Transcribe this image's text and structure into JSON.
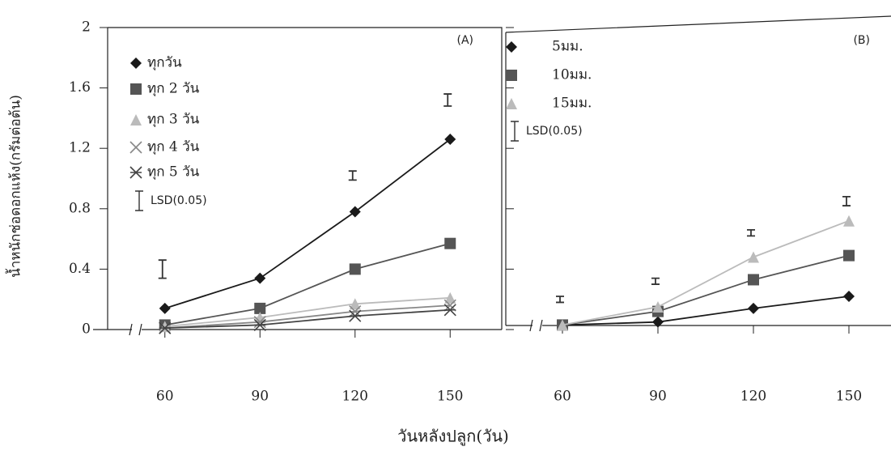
{
  "ylabel": "น้ำหนักช่อดอกแห้ง(กรัมต่อต้น)",
  "xlabel": "วันหลังปลูก(วัน)",
  "chart_data": [
    {
      "type": "line",
      "title": "(A)",
      "categories": [
        "60",
        "90",
        "120",
        "150"
      ],
      "ylim": [
        0,
        2
      ],
      "yticks": [
        0,
        0.4,
        0.8,
        1.2,
        1.6,
        2
      ],
      "series": [
        {
          "name": "ทุกวัน",
          "color": "#1a1a1a",
          "marker": "diamond",
          "values": [
            0.14,
            0.34,
            0.78,
            1.26
          ]
        },
        {
          "name": "ทุก 2 วัน",
          "color": "#555555",
          "marker": "square",
          "values": [
            0.03,
            0.14,
            0.4,
            0.57
          ]
        },
        {
          "name": "ทุก 3 วัน",
          "color": "#bbbbbb",
          "marker": "triangle",
          "values": [
            0.02,
            0.08,
            0.17,
            0.21
          ]
        },
        {
          "name": "ทุก 4 วัน",
          "color": "#888888",
          "marker": "x",
          "values": [
            0.01,
            0.05,
            0.12,
            0.16
          ]
        },
        {
          "name": "ทุก 5 วัน",
          "color": "#444444",
          "marker": "asterisk",
          "values": [
            0.01,
            0.03,
            0.09,
            0.13
          ]
        }
      ],
      "lsd": {
        "name": "LSD(0.05)",
        "color": "#333333",
        "values": [
          0.4,
          null,
          1.02,
          1.52
        ],
        "errors": [
          0.06,
          null,
          0.03,
          0.04
        ]
      }
    },
    {
      "type": "line",
      "title": "(B)",
      "categories": [
        "60",
        "90",
        "120",
        "150"
      ],
      "series": [
        {
          "name": "5มม.",
          "color": "#1a1a1a",
          "marker": "diamond",
          "values": [
            0.03,
            0.05,
            0.14,
            0.22
          ]
        },
        {
          "name": "10มม.",
          "color": "#555555",
          "marker": "square",
          "values": [
            0.03,
            0.12,
            0.33,
            0.49
          ]
        },
        {
          "name": "15มม.",
          "color": "#bbbbbb",
          "marker": "triangle",
          "values": [
            0.03,
            0.15,
            0.48,
            0.72
          ]
        }
      ],
      "lsd": {
        "name": "LSD(0.05)",
        "color": "#333333",
        "values": [
          0.2,
          0.32,
          0.64,
          0.85
        ],
        "errors": [
          0.02,
          0.02,
          0.02,
          0.03
        ]
      }
    }
  ]
}
